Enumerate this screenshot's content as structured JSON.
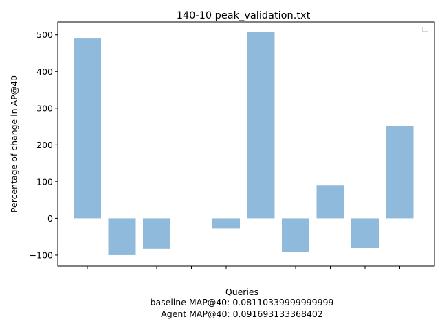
{
  "chart_data": {
    "type": "bar",
    "title": "140-10 peak_validation.txt",
    "ylabel": "Percentage of change in AP@40",
    "xlabel_lines": [
      "Queries",
      "baseline MAP@40: 0.08110339999999999",
      "Agent MAP@40: 0.091693133368402"
    ],
    "categories": [
      "",
      "",
      "",
      "",
      "",
      "",
      "",
      "",
      "",
      ""
    ],
    "values": [
      490,
      -100,
      -83,
      0,
      -28,
      507,
      -92,
      90,
      -80,
      252
    ],
    "ylim": [
      -130,
      535
    ],
    "yticks": [
      -100,
      0,
      100,
      200,
      300,
      400,
      500
    ],
    "ytick_labels": [
      "−100",
      "0",
      "100",
      "200",
      "300",
      "400",
      "500"
    ],
    "bar_color": "#8fbadb",
    "grid": false,
    "legend": {
      "location": "top-right",
      "entries": []
    }
  }
}
